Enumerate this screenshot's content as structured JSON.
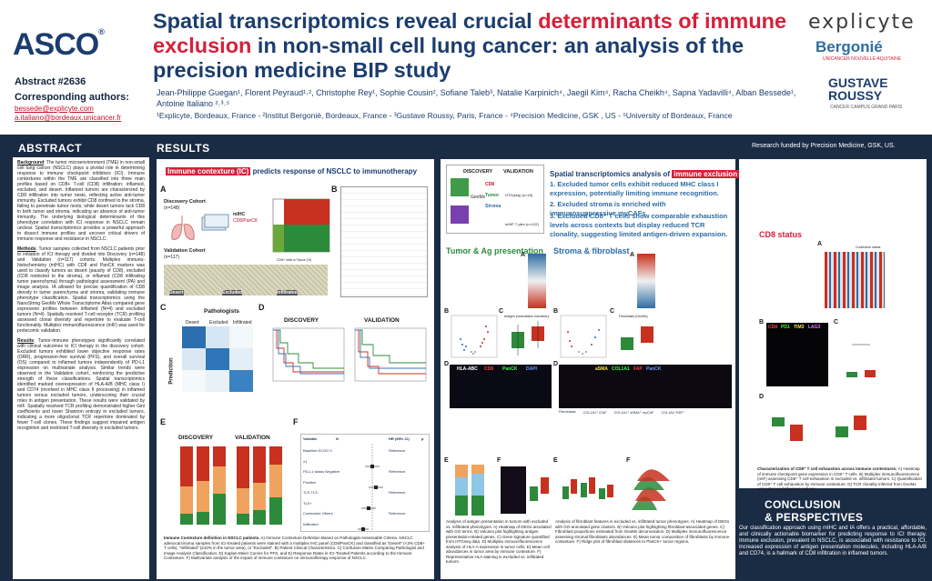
{
  "header": {
    "logo": "ASCO",
    "abstract": "Abstract #2636",
    "corr_label": "Corresponding authors:",
    "emails": [
      "bessede@explicyte.com",
      "a.italiano@bordeaux.unicancer.fr"
    ],
    "title_parts": [
      {
        "text": "Spatial transcriptomics reveal crucial ",
        "hl": false
      },
      {
        "text": "determinants of immune exclusion",
        "hl": true
      },
      {
        "text": " in non-small cell lung cancer: an analysis of the precision medicine BIP study",
        "hl": false
      }
    ],
    "authors": "Jean-Philippe Guegan¹, Florent Peyraud¹˒², Christophe Rey¹, Sophie Cousin², Sofiane Taleb³, Natalie Karpinich⁴, Jaegil Kim⁴, Racha Cheikh⁴, Sapna Yadavilli⁴, Alban Bessede¹, Antoine Italiano ²˒³˒⁵",
    "affiliations": "¹Explicyte, Bordeaux, France - ²Institut Bergonié, Bordeaux, France - ³Gustave Roussy, Paris, France - ⁴Precision Medicine, GSK , US - ⁵University of Bordeaux, France",
    "logo_explicyte": "explicyte",
    "logo_bergonie": "Bergonié",
    "logo_bergonie_sub": "UNICANCER NOUVELLE-AQUITAINE",
    "logo_gustave": "GUSTAVE ROUSSY",
    "logo_gustave_sub": "CANCER CAMPUS GRAND PARIS"
  },
  "abstract": {
    "heading": "ABSTRACT",
    "background_label": "Background",
    "background": ": The tumor microenvironment (TME) in non-small cell lung cancer (NSCLC) plays a pivotal role in determining response to immune checkpoint inhibitors (ICI). Immune contextures within the TME are classified into three main profiles based on CD8+ T-cell (CD8) infiltration: inflamed, excluded, and desert. Inflamed tumors are characterized by CD8 infiltration into tumor nests, reflecting active anti-tumor immunity. Excluded tumors exhibit CD8 confined to the stroma, failing to penetrate tumor nests, while desert tumors lack CD8 in both tumor and stroma, indicating an absence of anti-tumor immunity. The underlying biological determinants of this phenotype correlation with ICI response in NSCLC remain unclear. Spatial transcriptomics provides a powerful approach to dissect immune profiles and uncover critical drivers of immune response and resistance in NSCLC.",
    "methods_label": "Methods",
    "methods": ": Tumor samples collected from NSCLC patients prior to initiation of ICI therapy and divided into Discovery (n=148) and Validation (n=117) cohorts. Multiplex immuno-histochemistry (mIHC) with CD8 and PanCK markers was used to classify tumors as desert (paucity of CD8), excluded (CD8 restricted to the stroma), or inflamed (CD8 infiltrating tumor parenchyma) through pathologist assessment (PA) and image analysis. IA allowed for precise quantification of CD8 density in tumor parenchyma and stroma, validating immune phenotype classification. Spatial transcriptomics using the NanoString GeoMx Whole Transcriptome Atlas compared gene expression profiles between inflamed (N=4) and excluded tumors (N=4). Spatially resolved T-cell receptor (TCR) profiling assessed clonal diversity and repertoire to evaluate T-cell functionality. Multiplex immunofluorescence (mIF) was used for protecomic validation.",
    "results_label": "Results",
    "results": ": Tumor-immune phenotypes significantly correlated with clinical outcomes to ICI therapy in the discovery cohort. Excluded tumors exhibited lower objective response rates (ORR), progression-free survival (PFS), and overall survival (OS) compared to inflamed tumors independently of PD-L1 expression on multivariate analysis. Similar trends were observed in the Validation cohort, reinforcing the predictive strength of these classifications. Spatial transcriptomics identified marked overexpression of HLA-A/B (MHC class I) and CD74 (involved in MHC class II processing) in inflamed tumors versus excluded tumors, underscoring their crucial roles in antigen presentation. These results were validated by mIF. Spatially resolved TCR profiling demonstrated higher Gini coefficients and lower Shannon entropy in excluded tumors, indicating a more oligoclonal TCR repertoire dominated by fewer T-cell clones. These findings suggest impaired antigen recognition and restricted T-cell diversity in excluded tumors."
  },
  "results": {
    "heading": "RESULTS",
    "funding": "Research funded by Precision Medicine, GSK, US."
  },
  "panel1": {
    "title_tag": "Immune contexture (IC)",
    "title_rest": " predicts response of NSCLC to immunotherapy",
    "discovery_cohort": "Discovery Cohort",
    "discovery_n": "(n=148)",
    "validation_cohort": "Validation Cohort",
    "validation_n": "(n=117)",
    "mihc": "mIHC",
    "mihc_markers": "CD8/PanCK",
    "scatter_xlabel": "CD8+ cells in Tissue (%)",
    "scatter_ylabel": "CD8+ cells in Tumor (%)",
    "tissue_labels": [
      "Desert",
      "Excluded",
      "Infiltrated"
    ],
    "cm_title": "Pathologists",
    "cm_ylabel": "Prediction",
    "cm_cols": [
      "Desert",
      "Excluded",
      "Infiltrated"
    ],
    "km_titles": [
      "DISCOVERY",
      "VALIDATION"
    ],
    "bar_titles": [
      "DISCOVERY",
      "VALIDATION"
    ],
    "forest_headers": [
      "Variable",
      "N",
      "HR (95% CI)",
      "p"
    ],
    "forest_rows": [
      {
        "var": "Baseline ECOG",
        "level": "0",
        "ref": "Reference"
      },
      {
        "var": "",
        "level": "≥1",
        "ref": ""
      },
      {
        "var": "PD-L1 status",
        "level": "Negative",
        "ref": "Reference"
      },
      {
        "var": "",
        "level": "Positive",
        "ref": ""
      },
      {
        "var": "TLS",
        "level": "TLS-",
        "ref": "Reference"
      },
      {
        "var": "",
        "level": "TLS+",
        "ref": ""
      },
      {
        "var": "Contexture",
        "level": "Others",
        "ref": "Reference"
      },
      {
        "var": "",
        "level": "Infiltrated",
        "ref": ""
      }
    ],
    "caption_bold": "Immune Contexture definition in NSCLC patients.",
    "caption": " A) Immune Contexture Definition Based on Pathologist-Assessable Criteria. NSCLC adenocarcinoma samples from ICI-treated patients were stained with a multiplex IHC panel (CD8/PanCK) and classified as \"Desert\" (<3% CD8+ T cells), \"Infiltrated\" (≥10% in the tumor area), or \"Excluded\". B) Patient Clinical Characteristics. C) Confusion Matrix Comparing Pathologist and Image Analysis Classification. D) Kaplan-Meier Curves for PFS, and E) Response Rates in ICI-Treated Patients according to the Immune Contexture. F) Multivariate analysis of the impact of immune contexture on immunotherapy response of NSCLC."
  },
  "panel2": {
    "workflow_discovery": "DISCOVERY",
    "workflow_validation": "VALIDATION",
    "workflow_labels": [
      "CD8",
      "Tumor",
      "Stroma"
    ],
    "workflow_geomx": "GeoMx",
    "workflow_n1": "HTG(seq) (n=16)",
    "workflow_n2": "mIHF 7-plex (n=122)",
    "sp_title_pre": "Spatial transcriptomics analysis of ",
    "sp_title_tag": "immune exclusion",
    "sp_title_post": ":",
    "points": [
      "1. Excluded tumor cells exhibit reduced MHC class I expression, potentially limiting immune recognition.",
      "2. Excluded stroma is enriched with immunosuppressive myCAFs.",
      "3. Excluded CD8⁺ T cells show comparable exhaustion levels across contexts but display reduced TCR clonality, suggesting limited antigen-driven expansion."
    ],
    "sec_tumor": "Tumor & Ag presentation",
    "sec_stroma": "Stroma & fibroblast",
    "caption_tumor": "Analysis of antigen presentation in tumors with excluded vs. infiltrated phenotypes. A) Heatmap of DEGs annotated with GO terms. B) Volcano plot highlighting antigen presentation-related genes. C) Gene signature quantified from HTGseq data. D) Multiplex immunofluorescence analysis of HLA-A expression in tumor cells. E) Mean cell abundances in tumor area by immune contexture. F) Representative HLA staining in excluded vs. infiltrated tumors.",
    "caption_stroma": "Analysis of fibroblast features in excluded vs. infiltrated tumor phenotypes. A) Heatmap of DEGs with GO-annotated gene clusters. B) Volcano plot highlighting fibroblast-associated genes. C) Fibroblast proportions estimated from GeoMx deconvolution. D) Multiplex immunofluorescence assessing stromal fibroblasts abundances. E) Mean tumor composition of fibroblasts by immune contexture. F) Ridge plot of fibroblast distances to PanCK+ tumor regions.",
    "mif_labels": [
      "HLA-ABC",
      "CD8",
      "PanCK",
      "DAPI"
    ],
    "stroma_mif_labels": [
      "aSMA",
      "COL1A1",
      "FAP",
      "PanCK"
    ],
    "fib_labels": [
      "Fibroblasts",
      "COL1A1⁺ iCAF",
      "COL1A1⁺ aSMA⁺ myCAF",
      "COL1A1⁺FAP⁺"
    ],
    "volcano_label": "Antigen presentation machinery",
    "fibro_label": "Fibroblasts (GeoMx)"
  },
  "panel3": {
    "sec_cd8": "CD8 status",
    "heat_title": "Contexture status",
    "mif_labels": [
      "CD8",
      "PD1",
      "TIM3",
      "LAG3"
    ],
    "caption_bold": "Characterization of CD8⁺ T cell exhaustion across immune contextures:",
    "caption": " A) Heatmap of immune checkpoint gene expression in CD8⁺ T cells. B) Multiplex immunofluorescence (mIF) assessing CD8⁺ T cell exhaustion in excluded vs. infiltrated tumors. C) Quantification of CD8⁺ T cell exhaustion by immune contexture. D) TCR clonality inferred from GeoMx using Gini and Shannon indices."
  },
  "conclusion": {
    "heading_1": "CONCLUSION",
    "heading_2": "& PERSPECTIVES",
    "text": "Our classification approach using mIHC and IA offers a practical, affordable, and clinically actionable biomarker for predicting response to ICI therapy. Immune exclusion, prevalent in NSCLC, is associated with resistance to ICI, increased expression of antigen presentation molecules, including HLA-A/B and CD74, is a hallmark of CD8 infiltration in inflamed tumors."
  },
  "panel_letters": [
    "A",
    "B",
    "C",
    "D",
    "E",
    "F"
  ],
  "colors": {
    "navy": "#1a2b44",
    "brand_blue": "#1b3d6f",
    "accent_red": "#d6203a",
    "accent_green": "#2e8b3d",
    "accent_blue": "#2e6da4"
  }
}
